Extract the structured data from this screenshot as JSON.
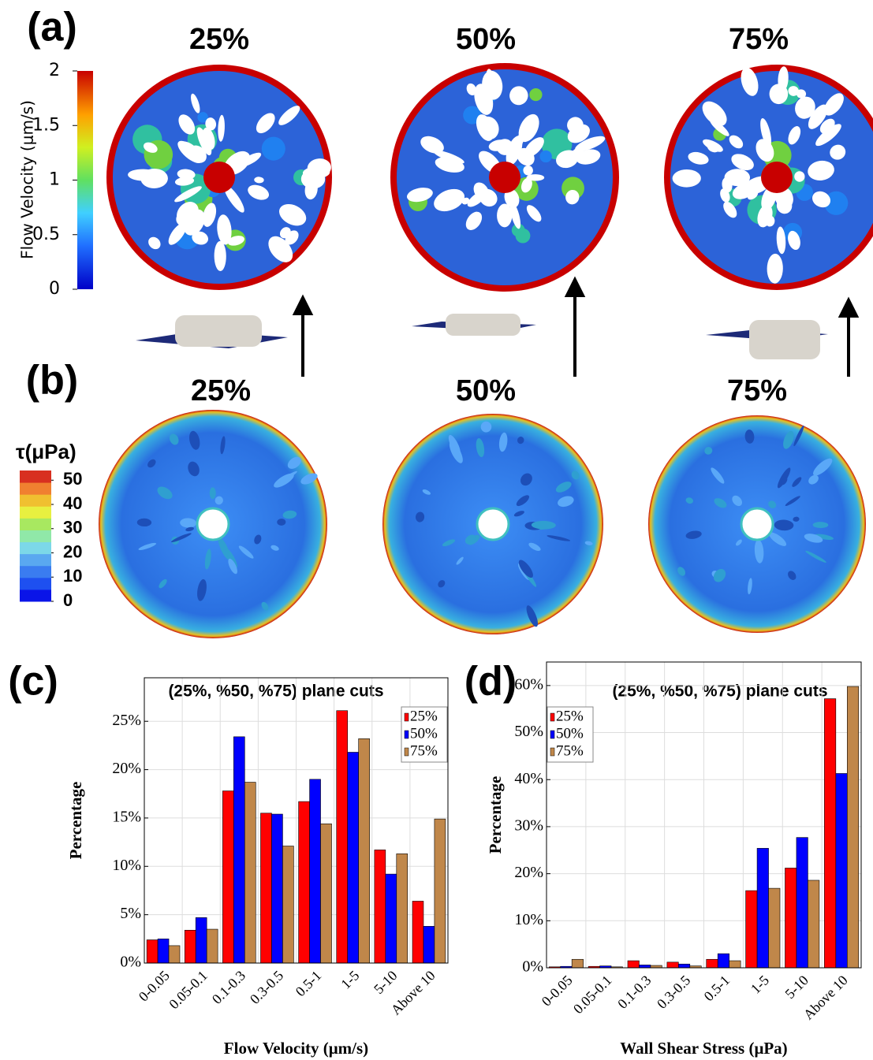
{
  "panels": {
    "a": {
      "label": "(a)",
      "titles": [
        "25%",
        "50%",
        "75%"
      ],
      "colorbar": {
        "label": "Flow Velocity (μm/s)",
        "lim": [
          0,
          2
        ],
        "ticks": [
          0,
          0.5,
          1,
          1.5,
          2
        ]
      }
    },
    "b": {
      "label": "(b)",
      "titles": [
        "25%",
        "50%",
        "75%"
      ],
      "colorbar": {
        "label": "τ(μPa)",
        "lim": [
          0,
          54
        ],
        "ticks": [
          0,
          10,
          20,
          30,
          40,
          50
        ]
      }
    }
  },
  "chart_data": [
    {
      "type": "bar",
      "panel": "(c)",
      "title": "(25%, %50, %75) plane cuts",
      "x_label": "Flow Velocity (μm/s)",
      "y_label": "Percentage",
      "categories": [
        "0-0.05",
        "0.05-0.1",
        "0.1-0.3",
        "0.3-0.5",
        "0.5-1",
        "1-5",
        "5-10",
        "Above 10"
      ],
      "series": [
        {
          "name": "25%",
          "color": "#ff0000",
          "values": [
            2.4,
            3.4,
            17.8,
            15.5,
            16.7,
            26.1,
            11.7,
            6.4
          ]
        },
        {
          "name": "50%",
          "color": "#0000ff",
          "values": [
            2.5,
            4.7,
            23.4,
            15.4,
            19.0,
            21.8,
            9.2,
            3.8
          ]
        },
        {
          "name": "75%",
          "color": "#c0874a",
          "values": [
            1.8,
            3.5,
            18.7,
            12.1,
            14.4,
            23.2,
            11.3,
            14.9
          ]
        }
      ],
      "ylim": [
        0,
        29.5
      ],
      "yticks": [
        {
          "value": 0,
          "label": "0%"
        },
        {
          "value": 5,
          "label": "5%"
        },
        {
          "value": 10,
          "label": "10%"
        },
        {
          "value": 15,
          "label": "15%"
        },
        {
          "value": 20,
          "label": "20%"
        },
        {
          "value": 25,
          "label": "25%"
        }
      ],
      "grid": true,
      "legend": "top-right"
    },
    {
      "type": "bar",
      "panel": "(d)",
      "title": "(25%, %50, %75) plane cuts",
      "x_label": "Wall Shear Stress (μPa)",
      "y_label": "Percentage",
      "categories": [
        "0-0.05",
        "0.05-0.1",
        "0.1-0.3",
        "0.3-0.5",
        "0.5-1",
        "1-5",
        "5-10",
        "Above 10"
      ],
      "series": [
        {
          "name": "25%",
          "color": "#ff0000",
          "values": [
            0.2,
            0.3,
            1.5,
            1.2,
            1.8,
            16.4,
            21.2,
            57.2
          ]
        },
        {
          "name": "50%",
          "color": "#0000ff",
          "values": [
            0.3,
            0.4,
            0.6,
            0.8,
            3.0,
            25.4,
            27.7,
            41.3
          ]
        },
        {
          "name": "75%",
          "color": "#c0874a",
          "values": [
            1.8,
            0.2,
            0.5,
            0.4,
            1.5,
            16.9,
            18.6,
            59.8
          ]
        }
      ],
      "ylim": [
        0,
        65
      ],
      "yticks": [
        {
          "value": 0,
          "label": "0%"
        },
        {
          "value": 10,
          "label": "10%"
        },
        {
          "value": 20,
          "label": "20%"
        },
        {
          "value": 30,
          "label": "30%"
        },
        {
          "value": 40,
          "label": "40%"
        },
        {
          "value": 50,
          "label": "50%"
        },
        {
          "value": 60,
          "label": "60%"
        }
      ],
      "grid": true,
      "legend": "top-left"
    }
  ]
}
